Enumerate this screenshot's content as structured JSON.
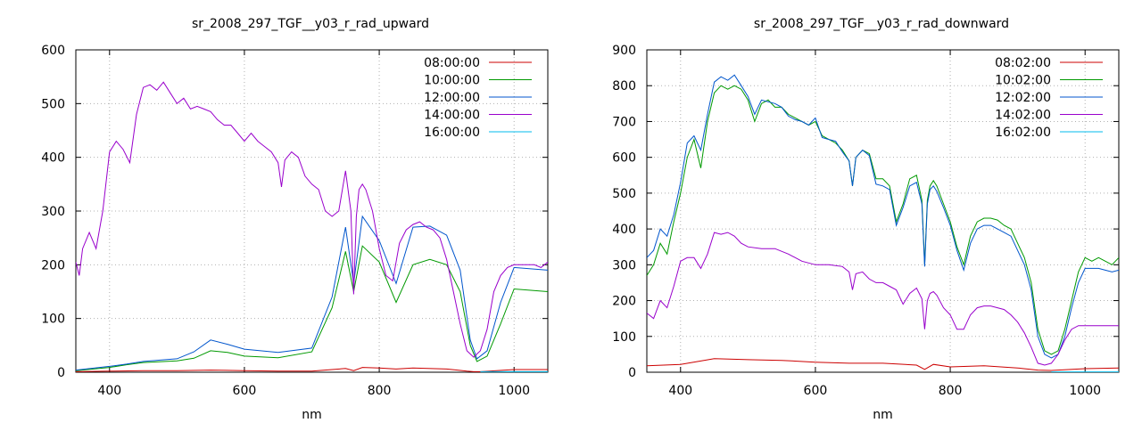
{
  "chart_data": [
    {
      "type": "line",
      "title": "sr_2008_297_TGF__y03_r_rad_upward",
      "xlabel": "nm",
      "ylabel": "",
      "xlim": [
        350,
        1050
      ],
      "ylim": [
        0,
        600
      ],
      "xticks": [
        400,
        600,
        800,
        1000
      ],
      "yticks": [
        0,
        100,
        200,
        300,
        400,
        500,
        600
      ],
      "grid": true,
      "legend_position": "top-right",
      "series": [
        {
          "name": "08:00:00",
          "color": "#cc0000",
          "x": [
            350,
            400,
            450,
            500,
            550,
            600,
            650,
            700,
            750,
            762,
            775,
            800,
            825,
            850,
            900,
            930,
            940,
            950,
            1000,
            1050
          ],
          "y": [
            1,
            2,
            3,
            3,
            4,
            3,
            2,
            2,
            7,
            3,
            9,
            8,
            6,
            8,
            6,
            2,
            1,
            1,
            5,
            5
          ]
        },
        {
          "name": "10:00:00",
          "color": "#009900",
          "x": [
            350,
            400,
            425,
            450,
            500,
            525,
            550,
            575,
            600,
            650,
            700,
            730,
            750,
            762,
            775,
            800,
            825,
            850,
            875,
            900,
            920,
            935,
            945,
            960,
            980,
            1000,
            1050
          ],
          "y": [
            3,
            9,
            14,
            18,
            21,
            26,
            40,
            37,
            30,
            27,
            38,
            120,
            225,
            150,
            235,
            205,
            130,
            200,
            210,
            200,
            150,
            50,
            20,
            30,
            90,
            155,
            150
          ]
        },
        {
          "name": "12:00:00",
          "color": "#0055cc",
          "x": [
            350,
            400,
            425,
            450,
            500,
            525,
            550,
            575,
            600,
            650,
            700,
            730,
            750,
            762,
            775,
            800,
            825,
            850,
            875,
            900,
            920,
            935,
            945,
            960,
            980,
            1000,
            1050
          ],
          "y": [
            4,
            11,
            15,
            20,
            25,
            38,
            60,
            52,
            43,
            37,
            45,
            140,
            270,
            165,
            290,
            245,
            165,
            270,
            272,
            255,
            190,
            60,
            25,
            40,
            130,
            195,
            190
          ]
        },
        {
          "name": "14:00:00",
          "color": "#9900cc",
          "x": [
            350,
            355,
            360,
            370,
            380,
            390,
            400,
            410,
            420,
            430,
            440,
            450,
            460,
            470,
            480,
            490,
            500,
            510,
            520,
            530,
            540,
            550,
            560,
            570,
            580,
            590,
            600,
            610,
            620,
            630,
            640,
            650,
            655,
            660,
            670,
            680,
            690,
            700,
            710,
            720,
            730,
            740,
            750,
            758,
            762,
            766,
            770,
            775,
            780,
            790,
            800,
            810,
            820,
            830,
            840,
            850,
            860,
            870,
            880,
            890,
            900,
            910,
            920,
            930,
            940,
            950,
            960,
            970,
            980,
            990,
            1000,
            1010,
            1020,
            1030,
            1040,
            1050
          ],
          "y": [
            205,
            180,
            230,
            260,
            230,
            300,
            410,
            430,
            415,
            390,
            480,
            530,
            535,
            525,
            540,
            520,
            500,
            510,
            490,
            495,
            490,
            485,
            470,
            460,
            460,
            445,
            430,
            445,
            430,
            420,
            410,
            390,
            345,
            395,
            410,
            400,
            365,
            350,
            340,
            300,
            290,
            300,
            375,
            300,
            145,
            290,
            340,
            350,
            340,
            300,
            230,
            180,
            170,
            240,
            265,
            275,
            280,
            270,
            265,
            250,
            210,
            150,
            90,
            40,
            28,
            40,
            80,
            150,
            180,
            195,
            200,
            200,
            200,
            200,
            195,
            205
          ]
        },
        {
          "name": "16:00:00",
          "color": "#00bbee",
          "x": [
            950,
            1000,
            1050
          ],
          "y": [
            1,
            1,
            1
          ]
        }
      ]
    },
    {
      "type": "line",
      "title": "sr_2008_297_TGF__y03_r_rad_downward",
      "xlabel": "nm",
      "ylabel": "",
      "xlim": [
        350,
        1050
      ],
      "ylim": [
        0,
        900
      ],
      "xticks": [
        400,
        600,
        800,
        1000
      ],
      "yticks": [
        0,
        100,
        200,
        300,
        400,
        500,
        600,
        700,
        800,
        900
      ],
      "grid": true,
      "legend_position": "top-right",
      "series": [
        {
          "name": "08:02:00",
          "color": "#cc0000",
          "x": [
            350,
            400,
            450,
            500,
            550,
            600,
            650,
            700,
            750,
            762,
            775,
            800,
            850,
            900,
            930,
            950,
            1000,
            1050
          ],
          "y": [
            18,
            22,
            38,
            35,
            33,
            28,
            25,
            25,
            20,
            8,
            22,
            15,
            18,
            12,
            6,
            5,
            10,
            12
          ]
        },
        {
          "name": "10:02:00",
          "color": "#009900",
          "x": [
            350,
            360,
            370,
            380,
            390,
            400,
            410,
            420,
            430,
            440,
            450,
            460,
            470,
            480,
            490,
            500,
            510,
            520,
            530,
            540,
            550,
            560,
            570,
            580,
            590,
            600,
            610,
            620,
            630,
            640,
            650,
            655,
            660,
            670,
            680,
            690,
            700,
            710,
            720,
            730,
            740,
            750,
            758,
            762,
            766,
            770,
            775,
            780,
            790,
            800,
            810,
            820,
            830,
            840,
            850,
            860,
            870,
            880,
            890,
            900,
            910,
            920,
            930,
            940,
            950,
            960,
            970,
            980,
            990,
            1000,
            1010,
            1020,
            1030,
            1040,
            1050
          ],
          "y": [
            270,
            300,
            360,
            330,
            420,
            500,
            600,
            650,
            570,
            700,
            780,
            800,
            790,
            800,
            790,
            760,
            700,
            750,
            760,
            740,
            740,
            720,
            710,
            700,
            690,
            700,
            660,
            650,
            640,
            620,
            590,
            520,
            600,
            620,
            610,
            540,
            540,
            520,
            420,
            470,
            540,
            550,
            480,
            300,
            480,
            520,
            535,
            520,
            470,
            420,
            350,
            300,
            380,
            420,
            430,
            430,
            425,
            410,
            400,
            360,
            320,
            250,
            120,
            60,
            50,
            60,
            120,
            200,
            280,
            320,
            310,
            320,
            310,
            300,
            320
          ]
        },
        {
          "name": "12:02:00",
          "color": "#0055cc",
          "x": [
            350,
            360,
            370,
            380,
            390,
            400,
            410,
            420,
            430,
            440,
            450,
            460,
            470,
            480,
            490,
            500,
            510,
            520,
            530,
            540,
            550,
            560,
            570,
            580,
            590,
            600,
            610,
            620,
            630,
            640,
            650,
            655,
            660,
            670,
            680,
            690,
            700,
            710,
            720,
            730,
            740,
            750,
            758,
            762,
            766,
            770,
            775,
            780,
            790,
            800,
            810,
            820,
            830,
            840,
            850,
            860,
            870,
            880,
            890,
            900,
            910,
            920,
            930,
            940,
            950,
            960,
            970,
            980,
            990,
            1000,
            1010,
            1020,
            1030,
            1040,
            1050
          ],
          "y": [
            320,
            340,
            400,
            380,
            440,
            530,
            640,
            660,
            620,
            720,
            810,
            825,
            815,
            830,
            800,
            770,
            720,
            760,
            755,
            750,
            740,
            715,
            705,
            700,
            690,
            710,
            655,
            650,
            645,
            615,
            590,
            520,
            600,
            620,
            605,
            525,
            520,
            510,
            410,
            460,
            520,
            530,
            470,
            295,
            470,
            510,
            520,
            505,
            460,
            410,
            340,
            285,
            360,
            400,
            410,
            410,
            400,
            390,
            380,
            340,
            300,
            230,
            100,
            50,
            40,
            50,
            100,
            180,
            250,
            290,
            290,
            290,
            285,
            280,
            285
          ]
        },
        {
          "name": "14:02:00",
          "color": "#9900cc",
          "x": [
            350,
            360,
            370,
            380,
            390,
            400,
            410,
            420,
            430,
            440,
            450,
            460,
            470,
            480,
            490,
            500,
            520,
            540,
            560,
            580,
            600,
            620,
            640,
            650,
            655,
            660,
            670,
            680,
            690,
            700,
            710,
            720,
            730,
            740,
            750,
            758,
            762,
            766,
            770,
            775,
            780,
            790,
            800,
            810,
            820,
            830,
            840,
            850,
            860,
            870,
            880,
            890,
            900,
            910,
            920,
            930,
            940,
            950,
            960,
            970,
            980,
            990,
            1000,
            1010,
            1020,
            1030,
            1040,
            1050
          ],
          "y": [
            165,
            150,
            200,
            180,
            240,
            310,
            320,
            320,
            290,
            330,
            390,
            385,
            390,
            380,
            360,
            350,
            345,
            345,
            330,
            310,
            300,
            300,
            295,
            280,
            230,
            275,
            280,
            260,
            250,
            250,
            240,
            230,
            190,
            220,
            235,
            205,
            120,
            200,
            220,
            225,
            215,
            180,
            160,
            120,
            120,
            160,
            180,
            185,
            185,
            180,
            175,
            160,
            140,
            110,
            70,
            25,
            20,
            25,
            50,
            90,
            120,
            130,
            130,
            130,
            130,
            130,
            130,
            130
          ]
        },
        {
          "name": "16:02:00",
          "color": "#00bbee",
          "x": [
            950,
            1000,
            1050
          ],
          "y": [
            1,
            1,
            1
          ]
        }
      ]
    }
  ]
}
